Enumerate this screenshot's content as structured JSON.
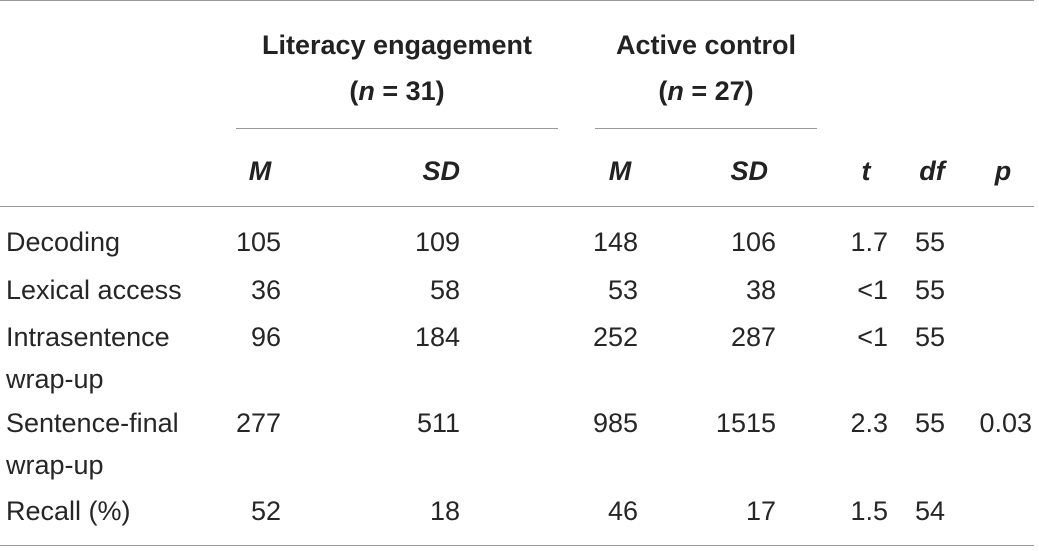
{
  "groups": [
    {
      "title": "Literacy engagement",
      "n_prefix": "(",
      "n_var": "n",
      "n_rest": " = 31)"
    },
    {
      "title": "Active control",
      "n_prefix": "(",
      "n_var": "n",
      "n_rest": " = 27)"
    }
  ],
  "columns": {
    "lit_m": "M",
    "lit_sd": "SD",
    "ctl_m": "M",
    "ctl_sd": "SD",
    "t": "t",
    "df": "df",
    "p": "p"
  },
  "rows": [
    {
      "label_1": "Decoding",
      "label_2": "",
      "lit_m": "105",
      "lit_sd": "109",
      "ctl_m": "148",
      "ctl_sd": "106",
      "t": "1.7",
      "df": "55",
      "p": ""
    },
    {
      "label_1": "Lexical access",
      "label_2": "",
      "lit_m": "36",
      "lit_sd": "58",
      "ctl_m": "53",
      "ctl_sd": "38",
      "t": "<1",
      "df": "55",
      "p": ""
    },
    {
      "label_1": "Intrasentence",
      "label_2": "wrap-up",
      "lit_m": "96",
      "lit_sd": "184",
      "ctl_m": "252",
      "ctl_sd": "287",
      "t": "<1",
      "df": "55",
      "p": ""
    },
    {
      "label_1": "Sentence-final",
      "label_2": "wrap-up",
      "lit_m": "277",
      "lit_sd": "511",
      "ctl_m": "985",
      "ctl_sd": "1515",
      "t": "2.3",
      "df": "55",
      "p": "0.03"
    },
    {
      "label_1": "Recall (%)",
      "label_2": "",
      "lit_m": "52",
      "lit_sd": "18",
      "ctl_m": "46",
      "ctl_sd": "17",
      "t": "1.5",
      "df": "54",
      "p": ""
    }
  ]
}
